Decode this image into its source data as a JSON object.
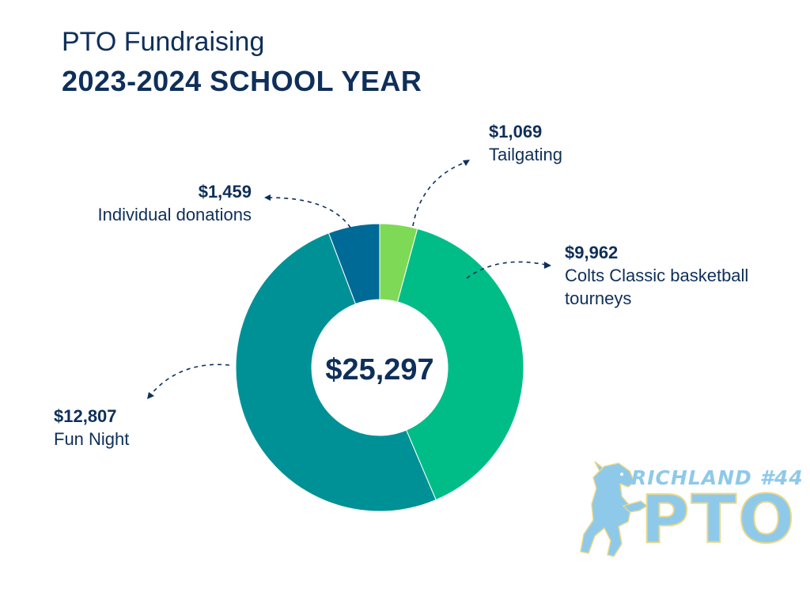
{
  "header": {
    "title": "PTO Fundraising",
    "subtitle": "2023-2024 SCHOOL YEAR"
  },
  "logo": {
    "line1": "RICHLAND #44",
    "line2": "PTO",
    "icon": "colt-horse-mascot"
  },
  "colors": {
    "text": "#0e2f5a",
    "logo": "#8ec9ea"
  },
  "chart_data": {
    "type": "pie",
    "style": "donut",
    "total_label": "$25,297",
    "slices": [
      {
        "name": "Tailgating",
        "value": 1069,
        "label": "$1,069",
        "color": "#7ed957"
      },
      {
        "name": "Colts Classic basketball tourneys",
        "value": 9962,
        "label": "$9,962",
        "color": "#00bd87"
      },
      {
        "name": "Fun Night",
        "value": 12807,
        "label": "$12,807",
        "color": "#009196"
      },
      {
        "name": "Individual donations",
        "value": 1459,
        "label": "$1,459",
        "color": "#006a97"
      }
    ]
  }
}
